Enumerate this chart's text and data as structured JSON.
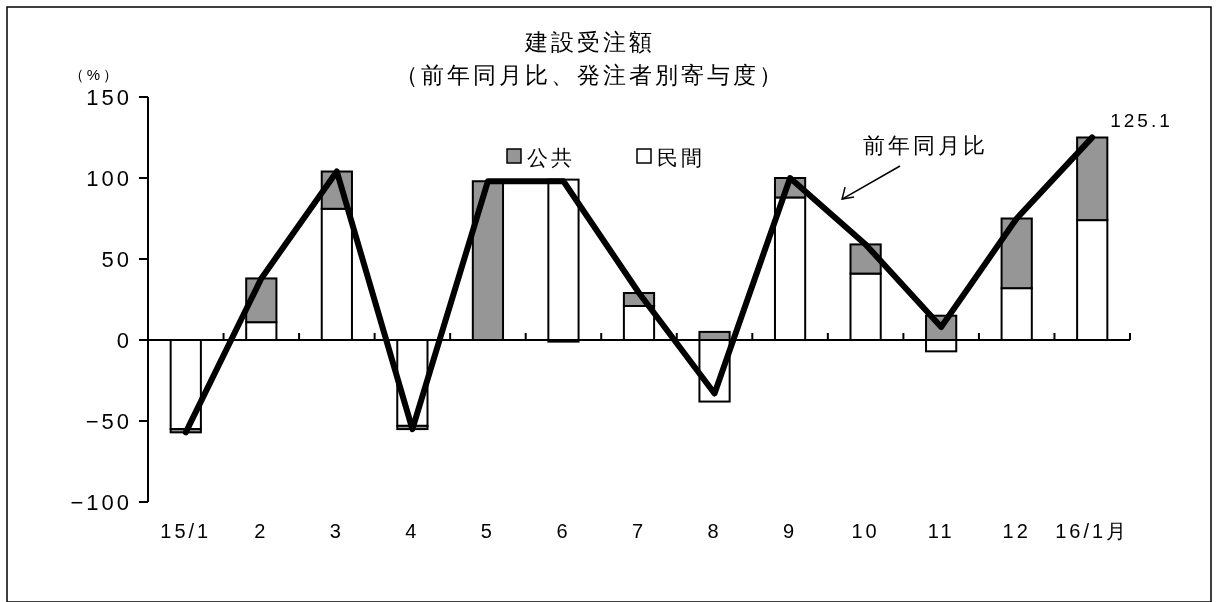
{
  "chart_data": {
    "type": "bar",
    "stacked": true,
    "title": "建設受注額",
    "subtitle": "（前年同月比、発注者別寄与度）",
    "ylabel": "（%）",
    "categories": [
      "15/1",
      "2",
      "3",
      "4",
      "5",
      "6",
      "7",
      "8",
      "9",
      "10",
      "11",
      "12",
      "16/1月"
    ],
    "ylim": [
      -100,
      150
    ],
    "yticks": [
      -100,
      -50,
      0,
      50,
      100,
      150
    ],
    "legend": "top",
    "series": [
      {
        "name": "民間",
        "color": "#ffffff",
        "values": [
          -55,
          11,
          81,
          -53,
          0,
          99,
          21,
          -38,
          88,
          41,
          -7,
          32,
          74
        ]
      },
      {
        "name": "公共",
        "color": "#969696",
        "values": [
          -2,
          27,
          23,
          -2,
          98,
          -1,
          8,
          5,
          12,
          18,
          15,
          43,
          51
        ]
      },
      {
        "name": "前年同月比",
        "type": "line",
        "color": "#000000",
        "values": [
          -57,
          38,
          104,
          -55,
          98,
          98,
          29,
          -33,
          100,
          59,
          8,
          75,
          125.1
        ],
        "value_labels": [
          null,
          null,
          null,
          null,
          null,
          null,
          null,
          null,
          null,
          null,
          null,
          null,
          "125.1"
        ]
      }
    ]
  }
}
